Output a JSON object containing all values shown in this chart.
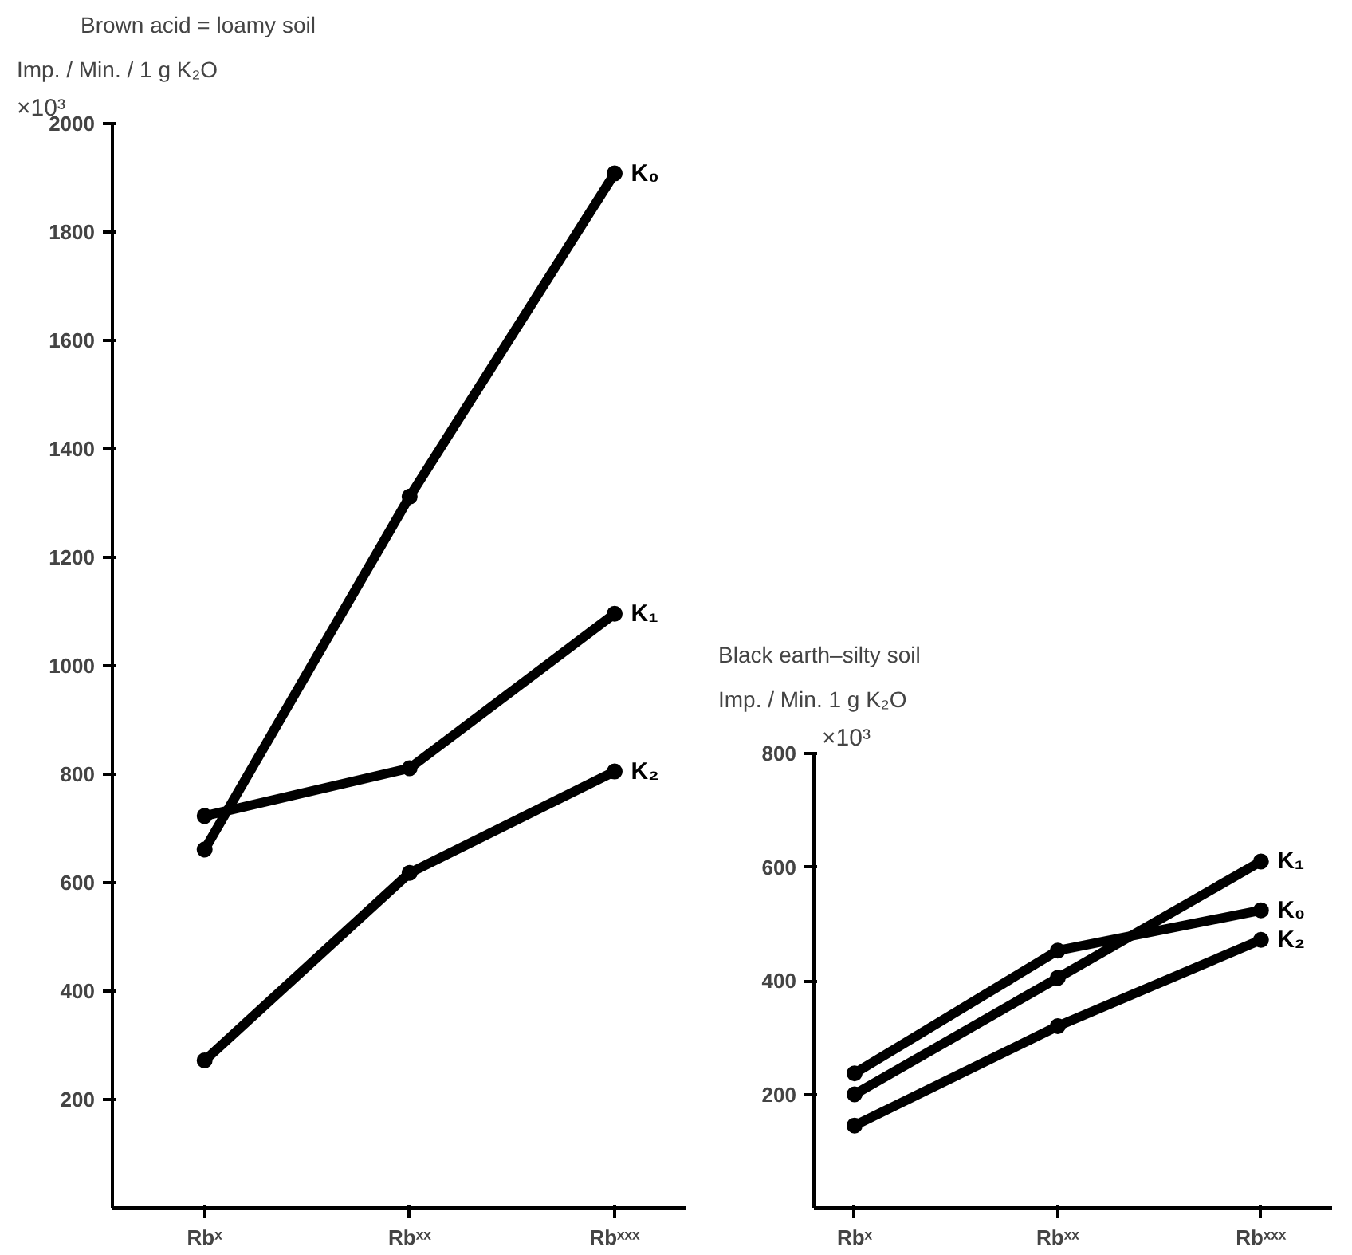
{
  "chart_data": [
    {
      "type": "line",
      "title": "Brown acid = loamy soil",
      "ylabel": "Imp. / Min. / 1 g K₂O",
      "annotations": [
        "×10³"
      ],
      "categories": [
        "Rbˣ",
        "Rbˣˣ",
        "Rbˣˣˣ"
      ],
      "series": [
        {
          "name": "K₀",
          "color": "#000000",
          "values": [
            661,
            1312,
            1908
          ]
        },
        {
          "name": "K₁",
          "color": "#000000",
          "values": [
            723,
            811,
            1096
          ]
        },
        {
          "name": "K₂",
          "color": "#000000",
          "values": [
            272,
            618,
            805
          ]
        }
      ],
      "ylim": [
        0,
        2000
      ],
      "yticks": [
        200,
        400,
        600,
        800,
        1000,
        1200,
        1400,
        1600,
        1800,
        2000
      ],
      "marker": "circle",
      "line_style": "solid",
      "grid": false,
      "legend": false
    },
    {
      "type": "line",
      "title": "Black earth–silty soil",
      "ylabel": "Imp. / Min. 1 g K₂O",
      "categories": [
        "Rbˣ",
        "Rbˣˣ",
        "Rbˣˣˣ"
      ],
      "series": [
        {
          "name": "K₁",
          "color": "#000000",
          "values": [
            200,
            405,
            610
          ]
        },
        {
          "name": "K₀",
          "color": "#000000",
          "values": [
            237,
            453,
            524
          ]
        },
        {
          "name": "K₂",
          "color": "#000000",
          "values": [
            145,
            320,
            472
          ]
        }
      ],
      "annotations": [
        "×10³"
      ],
      "ylim": [
        0,
        800
      ],
      "yticks": [
        200,
        400,
        600,
        800
      ],
      "marker": "circle",
      "line_style": "solid",
      "grid": false,
      "legend": false
    }
  ]
}
